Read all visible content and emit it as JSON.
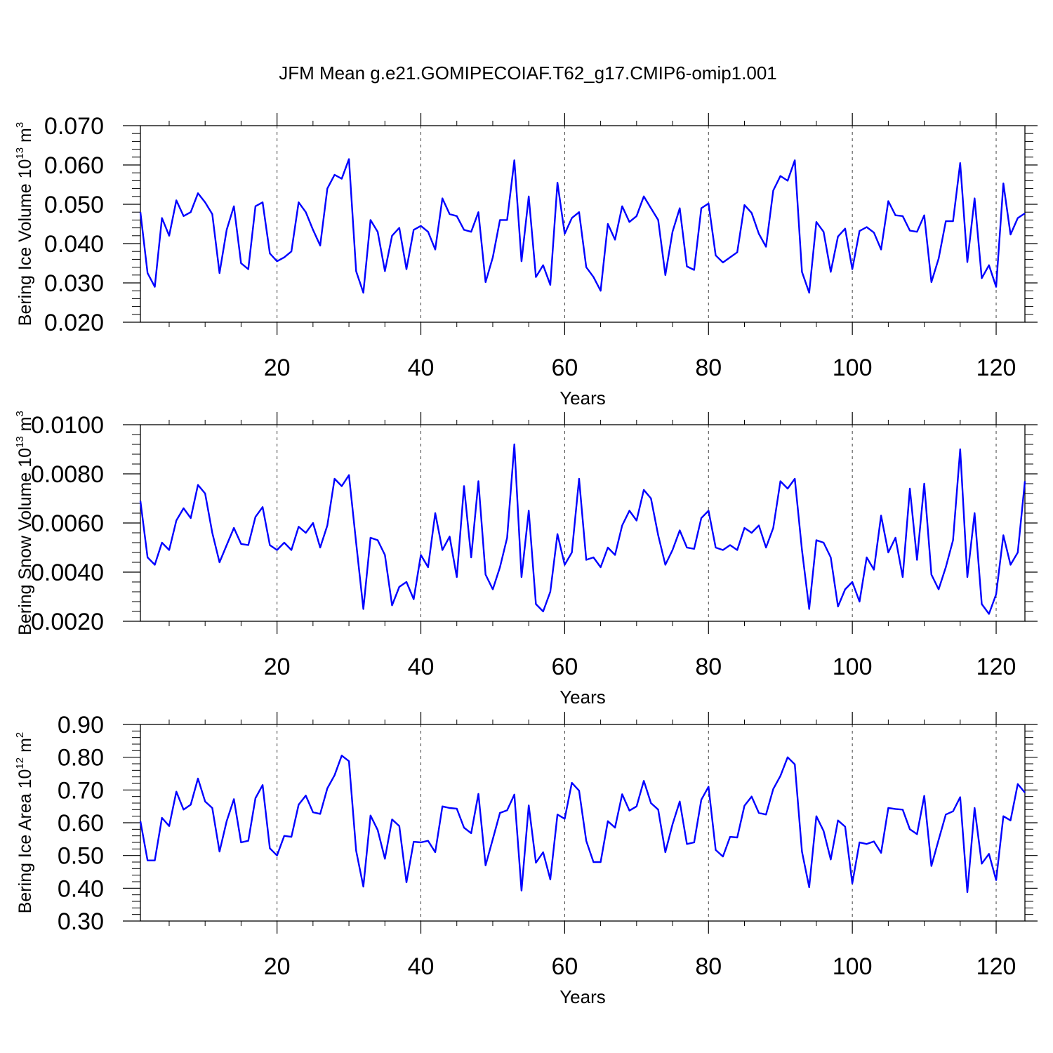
{
  "title": "JFM Mean g.e21.GOMIPECOIAF.T62_g17.CMIP6-omip1.001",
  "chart_data": [
    {
      "type": "line",
      "ylabel": {
        "text": "Bering Ice Volume 10",
        "sup": "13",
        "unit": " m",
        "unit_sup": "3"
      },
      "xlabel": "Years",
      "xlim": [
        1,
        124
      ],
      "ylim": [
        0.02,
        0.07
      ],
      "xticks": [
        20,
        40,
        60,
        80,
        100,
        120
      ],
      "xtick_labels": [
        "20",
        "40",
        "60",
        "80",
        "100",
        "120"
      ],
      "yticks": [
        0.02,
        0.03,
        0.04,
        0.05,
        0.06,
        0.07
      ],
      "ytick_labels": [
        "0.020",
        "0.030",
        "0.040",
        "0.050",
        "0.060",
        "0.070"
      ],
      "grid_x": "dashed",
      "color": "#0000ff",
      "values": [
        0.048,
        0.0325,
        0.029,
        0.0465,
        0.042,
        0.051,
        0.047,
        0.048,
        0.0528,
        0.0505,
        0.0475,
        0.0325,
        0.0435,
        0.0495,
        0.035,
        0.0335,
        0.0495,
        0.0505,
        0.0375,
        0.0355,
        0.0365,
        0.038,
        0.0505,
        0.048,
        0.0435,
        0.0395,
        0.054,
        0.0575,
        0.0565,
        0.0615,
        0.033,
        0.0275,
        0.046,
        0.043,
        0.033,
        0.042,
        0.044,
        0.0335,
        0.0435,
        0.0445,
        0.043,
        0.0385,
        0.0515,
        0.0475,
        0.047,
        0.0435,
        0.043,
        0.048,
        0.0302,
        0.0365,
        0.046,
        0.046,
        0.0612,
        0.0355,
        0.052,
        0.0315,
        0.0345,
        0.0295,
        0.0555,
        0.0425,
        0.0465,
        0.048,
        0.034,
        0.0315,
        0.028,
        0.045,
        0.041,
        0.0495,
        0.0455,
        0.047,
        0.052,
        0.049,
        0.046,
        0.032,
        0.043,
        0.049,
        0.0342,
        0.0333,
        0.049,
        0.0502,
        0.037,
        0.0352,
        0.0365,
        0.0378,
        0.0498,
        0.0478,
        0.0425,
        0.0392,
        0.0535,
        0.0572,
        0.056,
        0.0612,
        0.0328,
        0.0275,
        0.0455,
        0.043,
        0.0328,
        0.0418,
        0.0438,
        0.0335,
        0.0432,
        0.0442,
        0.0428,
        0.0385,
        0.0508,
        0.0472,
        0.047,
        0.0433,
        0.043,
        0.0472,
        0.0302,
        0.0362,
        0.0457,
        0.0457,
        0.0605,
        0.0353,
        0.0515,
        0.0312,
        0.0345,
        0.029,
        0.0553,
        0.0423,
        0.0465,
        0.0477
      ]
    },
    {
      "type": "line",
      "ylabel": {
        "text": "Bering Snow Volume 10",
        "sup": "13",
        "unit": " m",
        "unit_sup": "3"
      },
      "xlabel": "Years",
      "xlim": [
        1,
        124
      ],
      "ylim": [
        0.002,
        0.01
      ],
      "xticks": [
        20,
        40,
        60,
        80,
        100,
        120
      ],
      "xtick_labels": [
        "20",
        "40",
        "60",
        "80",
        "100",
        "120"
      ],
      "yticks": [
        0.002,
        0.004,
        0.006,
        0.008,
        0.01
      ],
      "ytick_labels": [
        "0.0020",
        "0.0040",
        "0.0060",
        "0.0080",
        "0.0100"
      ],
      "grid_x": "dashed",
      "color": "#0000ff",
      "values": [
        0.0069,
        0.0046,
        0.0043,
        0.0052,
        0.0049,
        0.0061,
        0.0066,
        0.0062,
        0.00755,
        0.0072,
        0.0056,
        0.0044,
        0.0051,
        0.0058,
        0.00515,
        0.0051,
        0.00625,
        0.00665,
        0.0051,
        0.0049,
        0.0052,
        0.0049,
        0.00585,
        0.0056,
        0.006,
        0.005,
        0.0059,
        0.0078,
        0.0075,
        0.00795,
        0.0052,
        0.0025,
        0.0054,
        0.0053,
        0.0047,
        0.00265,
        0.0034,
        0.0036,
        0.0029,
        0.0047,
        0.0042,
        0.0064,
        0.0049,
        0.00545,
        0.0038,
        0.0075,
        0.0046,
        0.0077,
        0.0039,
        0.0033,
        0.0042,
        0.0054,
        0.0092,
        0.0038,
        0.0065,
        0.0027,
        0.0024,
        0.0032,
        0.00555,
        0.0043,
        0.0048,
        0.0078,
        0.0045,
        0.0046,
        0.0042,
        0.005,
        0.0047,
        0.0059,
        0.0065,
        0.0061,
        0.00735,
        0.007,
        0.0055,
        0.0043,
        0.0049,
        0.0057,
        0.005,
        0.00495,
        0.0062,
        0.0065,
        0.005,
        0.0049,
        0.0051,
        0.0049,
        0.0058,
        0.0056,
        0.0059,
        0.005,
        0.0058,
        0.0077,
        0.0074,
        0.0078,
        0.0049,
        0.0025,
        0.0053,
        0.0052,
        0.0046,
        0.0026,
        0.0033,
        0.0036,
        0.0028,
        0.0046,
        0.0041,
        0.0063,
        0.0048,
        0.0054,
        0.0038,
        0.0074,
        0.0045,
        0.0076,
        0.0039,
        0.0033,
        0.0042,
        0.0053,
        0.009,
        0.0038,
        0.0064,
        0.0027,
        0.0023,
        0.0031,
        0.0055,
        0.0043,
        0.0048,
        0.0077
      ]
    },
    {
      "type": "line",
      "ylabel": {
        "text": "Bering Ice Area 10",
        "sup": "12",
        "unit": " m",
        "unit_sup": "2"
      },
      "xlabel": "Years",
      "xlim": [
        1,
        124
      ],
      "ylim": [
        0.3,
        0.9
      ],
      "xticks": [
        20,
        40,
        60,
        80,
        100,
        120
      ],
      "xtick_labels": [
        "20",
        "40",
        "60",
        "80",
        "100",
        "120"
      ],
      "yticks": [
        0.3,
        0.4,
        0.5,
        0.6,
        0.7,
        0.8,
        0.9
      ],
      "ytick_labels": [
        "0.30",
        "0.40",
        "0.50",
        "0.60",
        "0.70",
        "0.80",
        "0.90"
      ],
      "grid_x": "dashed",
      "color": "#0000ff",
      "values": [
        0.605,
        0.485,
        0.485,
        0.615,
        0.59,
        0.695,
        0.64,
        0.655,
        0.735,
        0.665,
        0.645,
        0.512,
        0.605,
        0.672,
        0.54,
        0.545,
        0.675,
        0.715,
        0.522,
        0.5,
        0.56,
        0.557,
        0.655,
        0.683,
        0.632,
        0.627,
        0.705,
        0.745,
        0.805,
        0.788,
        0.515,
        0.405,
        0.622,
        0.578,
        0.49,
        0.61,
        0.59,
        0.418,
        0.542,
        0.54,
        0.545,
        0.51,
        0.65,
        0.645,
        0.643,
        0.585,
        0.568,
        0.688,
        0.47,
        0.55,
        0.63,
        0.638,
        0.686,
        0.393,
        0.653,
        0.478,
        0.51,
        0.427,
        0.625,
        0.612,
        0.722,
        0.698,
        0.545,
        0.48,
        0.48,
        0.605,
        0.585,
        0.687,
        0.637,
        0.65,
        0.728,
        0.66,
        0.64,
        0.51,
        0.595,
        0.665,
        0.535,
        0.54,
        0.67,
        0.71,
        0.517,
        0.497,
        0.557,
        0.555,
        0.652,
        0.68,
        0.63,
        0.625,
        0.703,
        0.743,
        0.8,
        0.778,
        0.512,
        0.403,
        0.62,
        0.575,
        0.488,
        0.607,
        0.588,
        0.415,
        0.54,
        0.535,
        0.543,
        0.508,
        0.645,
        0.642,
        0.64,
        0.58,
        0.565,
        0.682,
        0.468,
        0.548,
        0.625,
        0.635,
        0.678,
        0.388,
        0.645,
        0.475,
        0.505,
        0.425,
        0.62,
        0.607,
        0.718,
        0.692
      ]
    }
  ]
}
